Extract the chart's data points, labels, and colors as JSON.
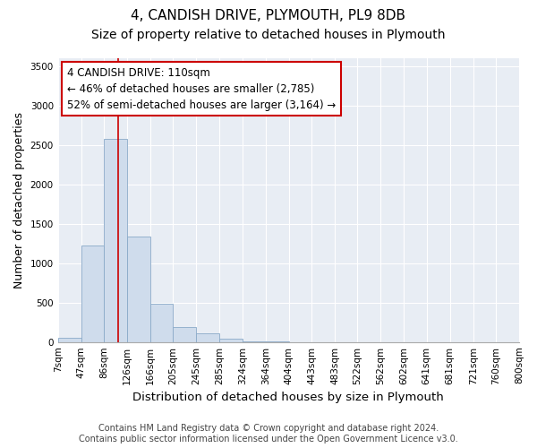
{
  "title": "4, CANDISH DRIVE, PLYMOUTH, PL9 8DB",
  "subtitle": "Size of property relative to detached houses in Plymouth",
  "xlabel": "Distribution of detached houses by size in Plymouth",
  "ylabel": "Number of detached properties",
  "bin_edges": [
    7,
    47,
    86,
    126,
    166,
    205,
    245,
    285,
    324,
    364,
    404,
    443,
    483,
    522,
    562,
    602,
    641,
    681,
    721,
    760,
    800
  ],
  "bar_heights": [
    50,
    1220,
    2580,
    1340,
    490,
    195,
    110,
    40,
    10,
    5,
    2,
    0,
    0,
    0,
    0,
    0,
    0,
    0,
    0,
    0
  ],
  "bar_color": "#cfdcec",
  "bar_edge_color": "#8aaac8",
  "vline_x": 110,
  "vline_color": "#cc0000",
  "ylim": [
    0,
    3600
  ],
  "yticks": [
    0,
    500,
    1000,
    1500,
    2000,
    2500,
    3000,
    3500
  ],
  "annotation_line1": "4 CANDISH DRIVE: 110sqm",
  "annotation_line2": "← 46% of detached houses are smaller (2,785)",
  "annotation_line3": "52% of semi-detached houses are larger (3,164) →",
  "annotation_box_color": "#cc0000",
  "footer_line1": "Contains HM Land Registry data © Crown copyright and database right 2024.",
  "footer_line2": "Contains public sector information licensed under the Open Government Licence v3.0.",
  "bg_color": "#ffffff",
  "plot_bg_color": "#e8edf4",
  "grid_color": "#ffffff",
  "title_fontsize": 11,
  "subtitle_fontsize": 10,
  "annot_fontsize": 8.5,
  "tick_fontsize": 7.5,
  "ylabel_fontsize": 9,
  "xlabel_fontsize": 9.5,
  "footer_fontsize": 7,
  "tick_labels": [
    "7sqm",
    "47sqm",
    "86sqm",
    "126sqm",
    "166sqm",
    "205sqm",
    "245sqm",
    "285sqm",
    "324sqm",
    "364sqm",
    "404sqm",
    "443sqm",
    "483sqm",
    "522sqm",
    "562sqm",
    "602sqm",
    "641sqm",
    "681sqm",
    "721sqm",
    "760sqm",
    "800sqm"
  ]
}
